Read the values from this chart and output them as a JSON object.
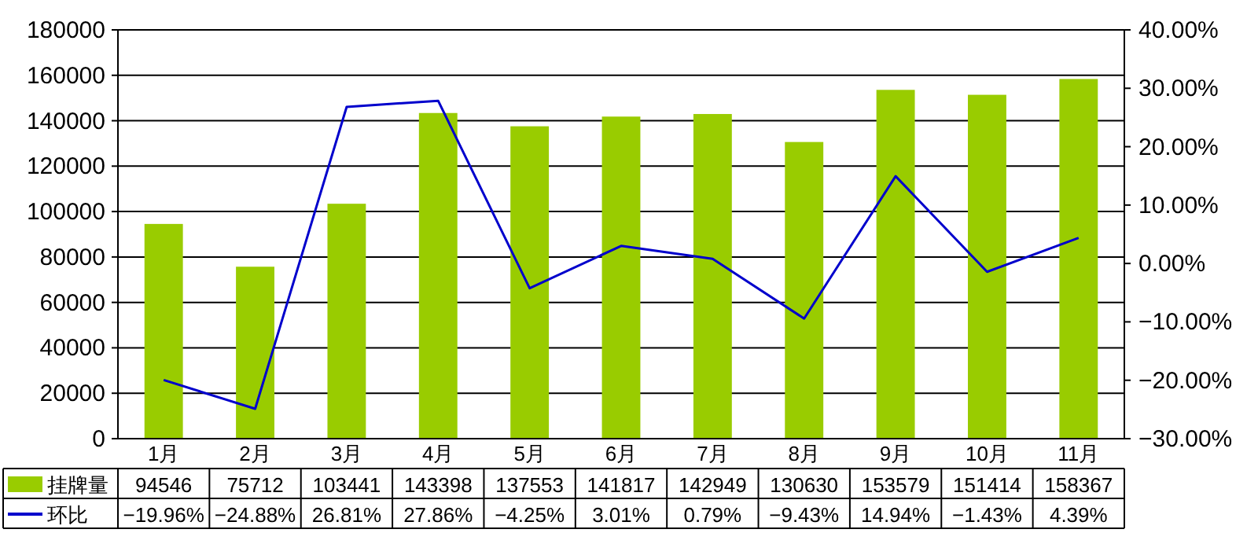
{
  "chart_data": {
    "type": "bar",
    "categories": [
      "1月",
      "2月",
      "3月",
      "4月",
      "5月",
      "6月",
      "7月",
      "8月",
      "9月",
      "10月",
      "11月"
    ],
    "series": [
      {
        "name": "挂牌量",
        "color": "#99cc00",
        "values": [
          94546,
          75712,
          103441,
          143398,
          137553,
          141817,
          142949,
          130630,
          153579,
          151414,
          158367
        ],
        "value_labels": [
          "94546",
          "75712",
          "103441",
          "143398",
          "137553",
          "141817",
          "142949",
          "130630",
          "153579",
          "151414",
          "158367"
        ]
      },
      {
        "name": "环比",
        "type": "line",
        "axis": "y2",
        "color": "#0000cc",
        "values": [
          -19.96,
          -24.88,
          26.81,
          27.86,
          -4.25,
          3.01,
          0.79,
          -9.43,
          14.94,
          -1.43,
          4.39
        ],
        "value_labels": [
          "−19.96%",
          "−24.88%",
          "26.81%",
          "27.86%",
          "−4.25%",
          "3.01%",
          "0.79%",
          "−9.43%",
          "14.94%",
          "−1.43%",
          "4.39%"
        ]
      }
    ],
    "ylim": [
      0,
      180000
    ],
    "yticks": [
      0,
      20000,
      40000,
      60000,
      80000,
      100000,
      120000,
      140000,
      160000,
      180000
    ],
    "y2lim": [
      -30,
      40
    ],
    "y2ticks": [
      {
        "value": -30,
        "label": "−30.00%"
      },
      {
        "value": -20,
        "label": "−20.00%"
      },
      {
        "value": -10,
        "label": "−10.00%"
      },
      {
        "value": 0,
        "label": "0.00%"
      },
      {
        "value": 10,
        "label": "10.00%"
      },
      {
        "value": 20,
        "label": "20.00%"
      },
      {
        "value": 30,
        "label": "30.00%"
      },
      {
        "value": 40,
        "label": "40.00%"
      }
    ],
    "grid": "y",
    "legend": "bottom",
    "marker": "none",
    "line_style": "solid"
  }
}
